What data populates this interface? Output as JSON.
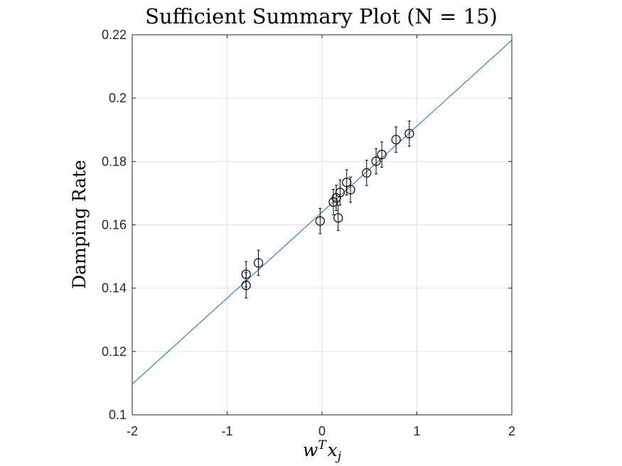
{
  "chart_data": {
    "type": "scatter",
    "title": "Sufficient Summary Plot (N = 15)",
    "xlabel": "wTxj",
    "xlabel_parts": {
      "base1": "w",
      "sup": "T",
      "base2": "x",
      "sub": "j"
    },
    "ylabel": "Damping Rate",
    "xlim": [
      -2,
      2
    ],
    "ylim": [
      0.1,
      0.22
    ],
    "xticks": [
      -2,
      -1,
      0,
      1,
      2
    ],
    "xtick_labels": [
      "-2",
      "-1",
      "0",
      "1",
      "2"
    ],
    "yticks": [
      0.1,
      0.12,
      0.14,
      0.16,
      0.18,
      0.2,
      0.22
    ],
    "ytick_labels": [
      "0.1",
      "0.12",
      "0.14",
      "0.16",
      "0.18",
      "0.2",
      "0.22"
    ],
    "grid": true,
    "fit_line": {
      "x": [
        -2,
        2
      ],
      "y": [
        0.1097,
        0.2183
      ],
      "color": "#0072bd"
    },
    "points": {
      "x": [
        -0.8,
        -0.8,
        -0.67,
        -0.02,
        0.12,
        0.15,
        0.17,
        0.19,
        0.26,
        0.3,
        0.47,
        0.57,
        0.63,
        0.78,
        0.92
      ],
      "y": [
        0.1444,
        0.1409,
        0.148,
        0.1612,
        0.1672,
        0.1685,
        0.1622,
        0.1702,
        0.1734,
        0.1711,
        0.1764,
        0.1801,
        0.1822,
        0.1869,
        0.1888
      ],
      "err": [
        0.004,
        0.004,
        0.004,
        0.004,
        0.004,
        0.004,
        0.004,
        0.004,
        0.004,
        0.004,
        0.004,
        0.004,
        0.004,
        0.004,
        0.004
      ]
    }
  }
}
